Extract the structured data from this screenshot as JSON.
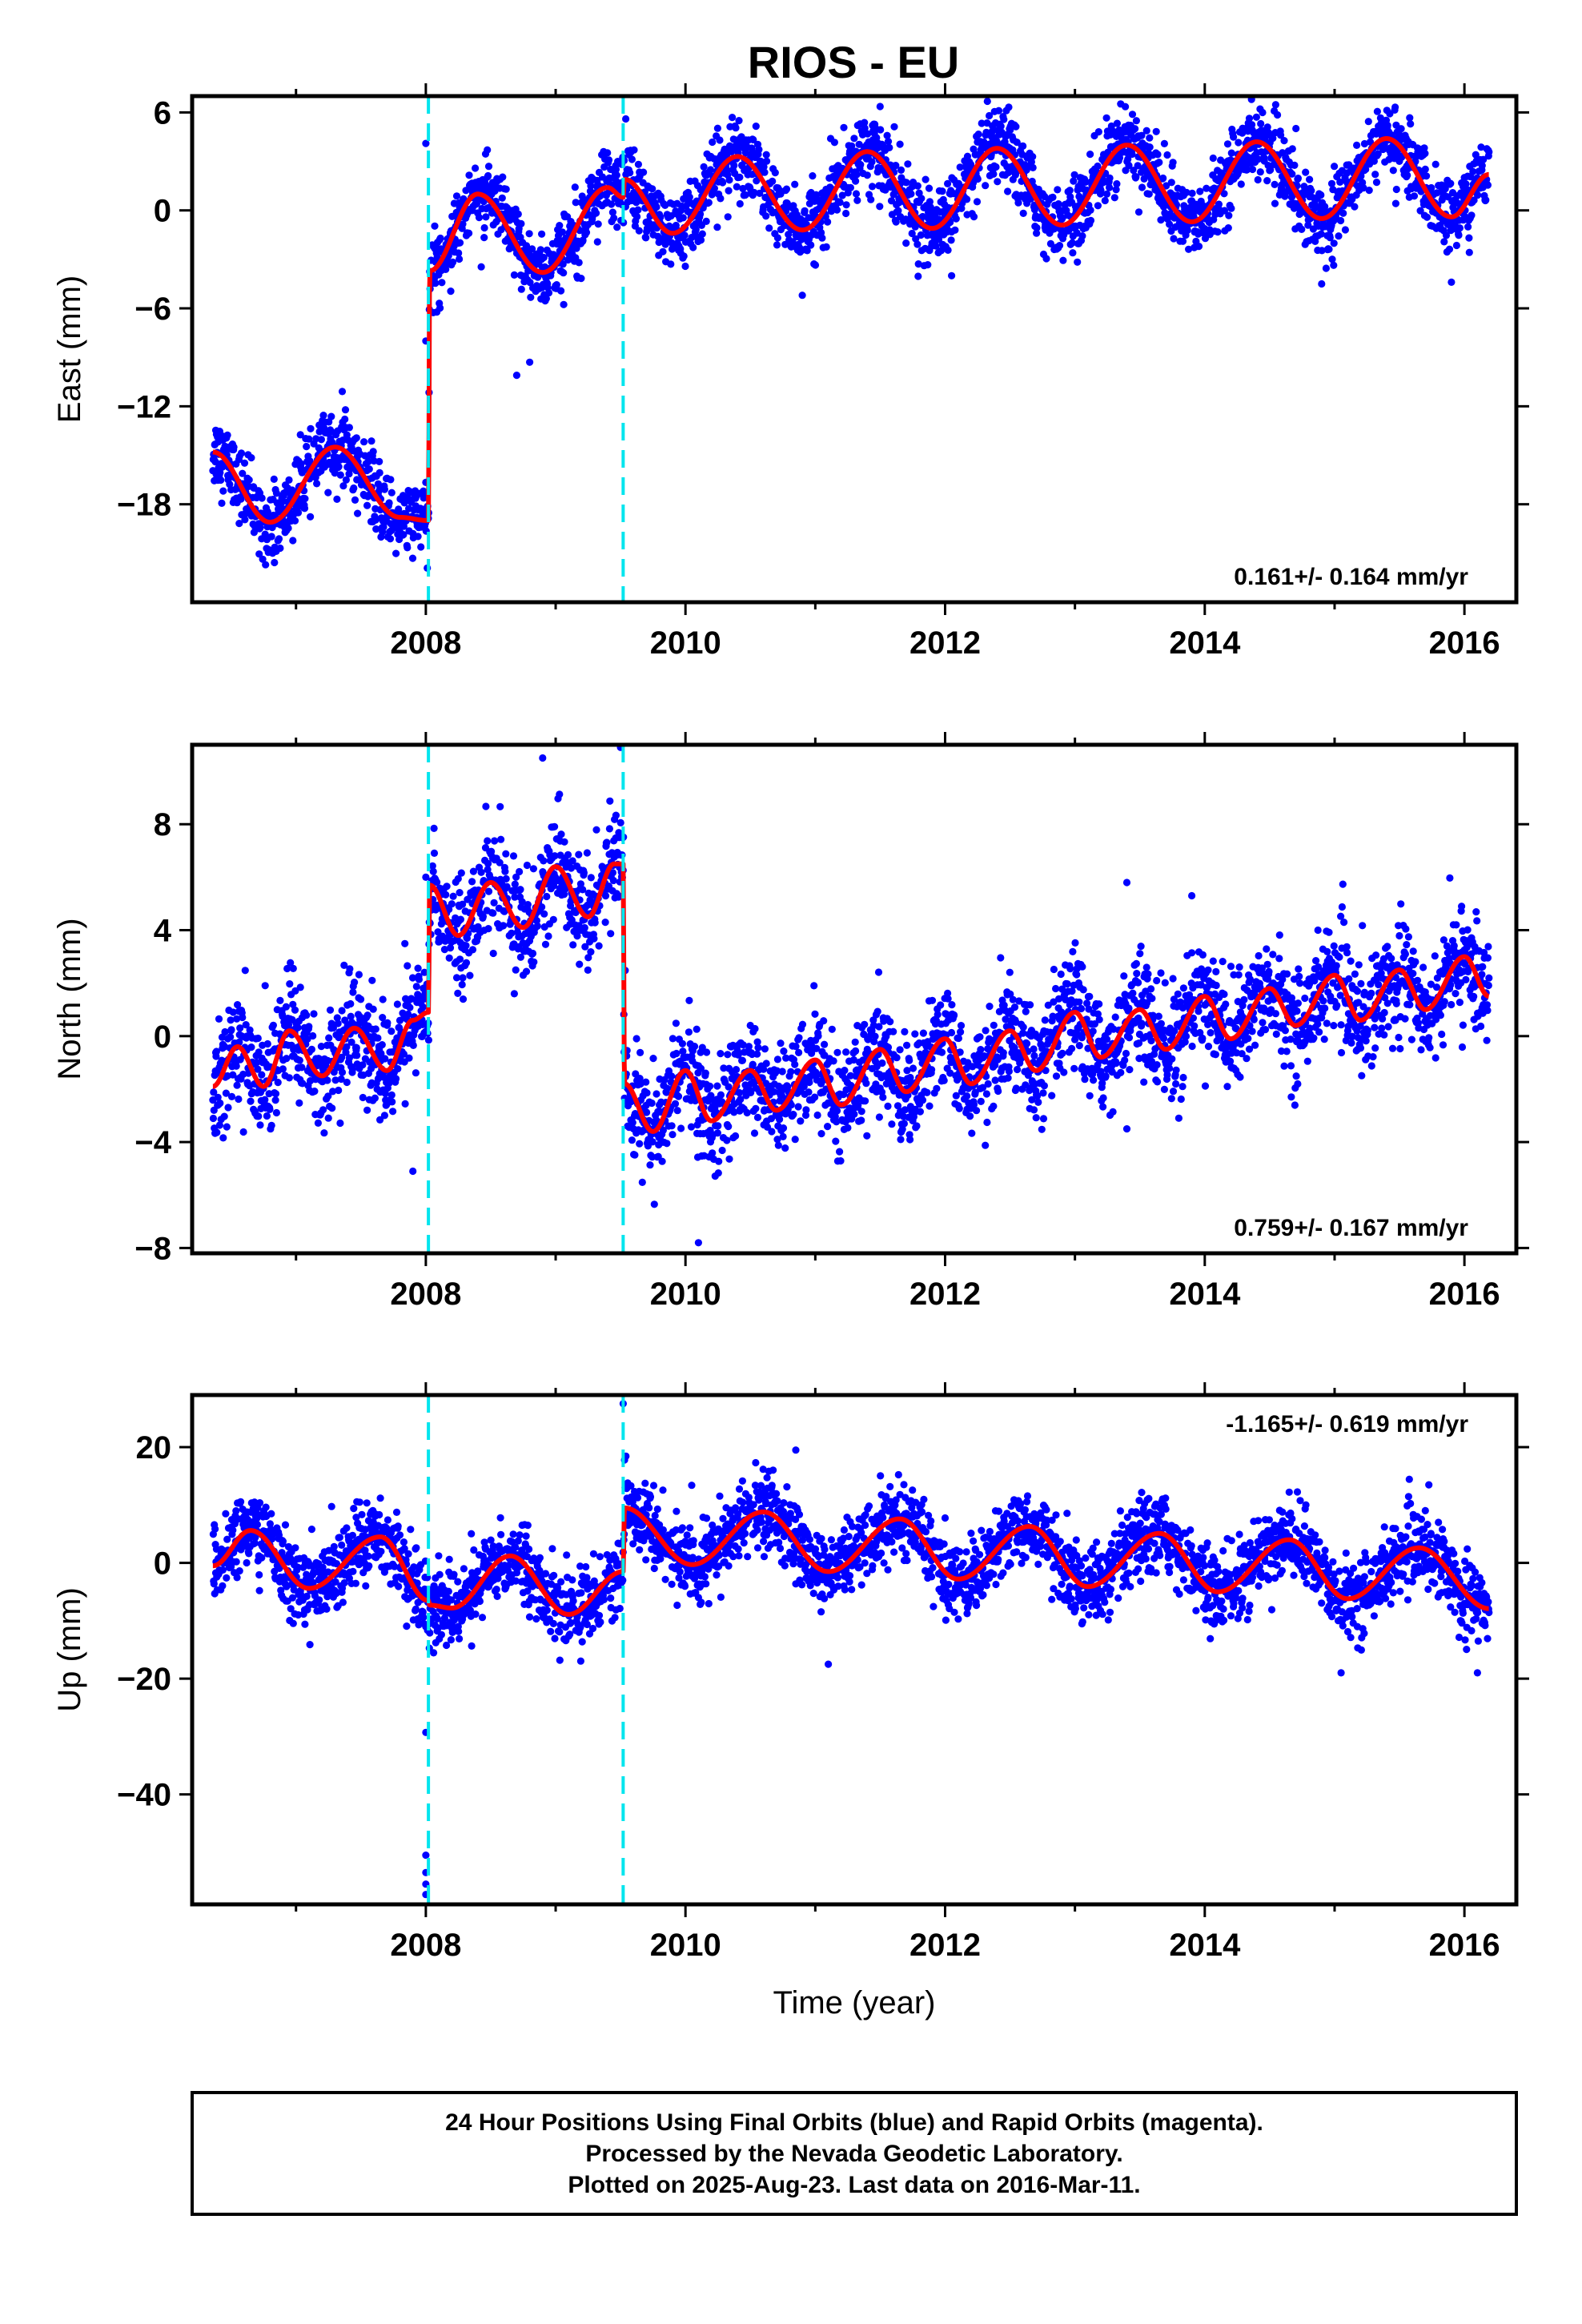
{
  "chart_data": [
    {
      "type": "scatter",
      "title": "RIOS - EU",
      "xlabel": "",
      "ylabel": "East (mm)",
      "xlim": [
        2006.2,
        2016.4
      ],
      "ylim": [
        -24,
        7
      ],
      "x_ticks": [
        2008,
        2010,
        2012,
        2014,
        2016
      ],
      "y_ticks": [
        -18,
        -12,
        -6,
        0,
        6
      ],
      "offsets": [
        2008.02,
        2009.52
      ],
      "rate_text": "0.161+/- 0.164 mm/yr",
      "rate_position": "bottom-right",
      "series": [
        {
          "color": "#0000ff",
          "kind": "daily-positions",
          "x_range": [
            2006.36,
            2016.19
          ],
          "scatter_sd": 1.1,
          "model_points": [
            [
              2006.36,
              -14.8
            ],
            [
              2006.8,
              -19.1
            ],
            [
              2007.3,
              -14.5
            ],
            [
              2007.8,
              -18.8
            ],
            [
              2008.02,
              -19.0
            ],
            [
              2008.03,
              -3.7
            ],
            [
              2008.4,
              1.0
            ],
            [
              2008.9,
              -3.8
            ],
            [
              2009.4,
              1.4
            ],
            [
              2009.52,
              0.8
            ],
            [
              2009.53,
              1.9
            ],
            [
              2009.9,
              -1.4
            ],
            [
              2010.4,
              3.3
            ],
            [
              2010.9,
              -1.2
            ],
            [
              2011.4,
              3.6
            ],
            [
              2011.9,
              -1.1
            ],
            [
              2012.4,
              3.8
            ],
            [
              2012.9,
              -0.9
            ],
            [
              2013.4,
              4.0
            ],
            [
              2013.9,
              -0.7
            ],
            [
              2014.4,
              4.2
            ],
            [
              2014.9,
              -0.5
            ],
            [
              2015.4,
              4.4
            ],
            [
              2015.9,
              -0.4
            ],
            [
              2016.19,
              2.2
            ]
          ],
          "outliers": [
            [
              2008.0,
              4.1
            ],
            [
              2008.0,
              -8.0
            ],
            [
              2008.7,
              -10.1
            ],
            [
              2008.8,
              -9.3
            ],
            [
              2009.54,
              5.6
            ],
            [
              2010.9,
              -5.2
            ],
            [
              2012.05,
              -4.0
            ],
            [
              2014.9,
              -4.5
            ],
            [
              2015.9,
              -4.4
            ]
          ]
        },
        {
          "color": "#ff0000",
          "kind": "model-fit",
          "x_range": [
            2006.36,
            2016.19
          ]
        }
      ]
    },
    {
      "type": "scatter",
      "title": "",
      "xlabel": "",
      "ylabel": "North (mm)",
      "xlim": [
        2006.2,
        2016.4
      ],
      "ylim": [
        -8.2,
        11
      ],
      "x_ticks": [
        2008,
        2010,
        2012,
        2014,
        2016
      ],
      "y_ticks": [
        -8,
        -4,
        0,
        4,
        8
      ],
      "offsets": [
        2008.02,
        2009.52
      ],
      "rate_text": "0.759+/- 0.167 mm/yr",
      "rate_position": "bottom-right",
      "series": [
        {
          "color": "#0000ff",
          "kind": "daily-positions",
          "x_range": [
            2006.36,
            2016.19
          ],
          "scatter_sd": 1.0,
          "model_points": [
            [
              2006.36,
              -1.9
            ],
            [
              2006.55,
              -0.4
            ],
            [
              2006.75,
              -1.9
            ],
            [
              2006.95,
              0.2
            ],
            [
              2007.2,
              -1.5
            ],
            [
              2007.45,
              0.3
            ],
            [
              2007.7,
              -1.3
            ],
            [
              2007.9,
              0.6
            ],
            [
              2008.02,
              0.9
            ],
            [
              2008.03,
              5.7
            ],
            [
              2008.25,
              3.8
            ],
            [
              2008.5,
              5.8
            ],
            [
              2008.75,
              4.1
            ],
            [
              2009.0,
              6.4
            ],
            [
              2009.25,
              4.5
            ],
            [
              2009.45,
              6.5
            ],
            [
              2009.52,
              6.5
            ],
            [
              2009.53,
              -1.8
            ],
            [
              2009.75,
              -3.6
            ],
            [
              2010.0,
              -1.3
            ],
            [
              2010.2,
              -3.2
            ],
            [
              2010.5,
              -1.3
            ],
            [
              2010.7,
              -2.8
            ],
            [
              2011.0,
              -0.9
            ],
            [
              2011.2,
              -2.6
            ],
            [
              2011.5,
              -0.5
            ],
            [
              2011.7,
              -2.1
            ],
            [
              2012.0,
              -0.1
            ],
            [
              2012.2,
              -1.8
            ],
            [
              2012.5,
              0.2
            ],
            [
              2012.7,
              -1.3
            ],
            [
              2013.0,
              0.9
            ],
            [
              2013.2,
              -0.8
            ],
            [
              2013.5,
              1.0
            ],
            [
              2013.7,
              -0.5
            ],
            [
              2014.0,
              1.5
            ],
            [
              2014.2,
              -0.1
            ],
            [
              2014.5,
              1.8
            ],
            [
              2014.7,
              0.4
            ],
            [
              2015.0,
              2.3
            ],
            [
              2015.2,
              0.6
            ],
            [
              2015.5,
              2.5
            ],
            [
              2015.7,
              1.0
            ],
            [
              2016.0,
              3.0
            ],
            [
              2016.19,
              1.5
            ]
          ],
          "outliers": [
            [
              2007.9,
              -5.1
            ],
            [
              2008.0,
              6.0
            ],
            [
              2008.9,
              10.5
            ],
            [
              2009.5,
              10.9
            ],
            [
              2010.1,
              -7.8
            ],
            [
              2013.4,
              5.8
            ],
            [
              2013.9,
              5.3
            ],
            [
              2013.4,
              -3.5
            ],
            [
              2013.8,
              -3.1
            ]
          ]
        },
        {
          "color": "#ff0000",
          "kind": "model-fit",
          "x_range": [
            2006.36,
            2016.19
          ]
        }
      ]
    },
    {
      "type": "scatter",
      "title": "",
      "xlabel": "Time (year)",
      "ylabel": "Up (mm)",
      "xlim": [
        2006.2,
        2016.4
      ],
      "ylim": [
        -59,
        29
      ],
      "x_ticks": [
        2008,
        2010,
        2012,
        2014,
        2016
      ],
      "y_ticks": [
        -40,
        -20,
        0,
        20
      ],
      "offsets": [
        2008.02,
        2009.52
      ],
      "rate_text": "-1.165+/- 0.619 mm/yr",
      "rate_position": "top-right",
      "series": [
        {
          "color": "#0000ff",
          "kind": "daily-positions",
          "x_range": [
            2006.36,
            2016.19
          ],
          "scatter_sd": 3.2,
          "model_points": [
            [
              2006.36,
              -0.5
            ],
            [
              2006.65,
              5.6
            ],
            [
              2007.1,
              -4.4
            ],
            [
              2007.65,
              4.5
            ],
            [
              2008.02,
              -6.5
            ],
            [
              2008.03,
              -7.3
            ],
            [
              2008.2,
              -7.8
            ],
            [
              2008.65,
              1.2
            ],
            [
              2009.1,
              -8.9
            ],
            [
              2009.52,
              -1.5
            ],
            [
              2009.53,
              9.5
            ],
            [
              2010.05,
              -0.3
            ],
            [
              2010.6,
              8.8
            ],
            [
              2011.1,
              -1.5
            ],
            [
              2011.65,
              7.6
            ],
            [
              2012.1,
              -2.8
            ],
            [
              2012.65,
              6.3
            ],
            [
              2013.1,
              -4.1
            ],
            [
              2013.65,
              5.1
            ],
            [
              2014.1,
              -5.0
            ],
            [
              2014.65,
              4.0
            ],
            [
              2015.1,
              -6.2
            ],
            [
              2015.65,
              2.6
            ],
            [
              2016.19,
              -7.9
            ]
          ],
          "outliers": [
            [
              2008.0,
              -29.3
            ],
            [
              2008.0,
              -50.5
            ],
            [
              2008.0,
              -53.5
            ],
            [
              2008.0,
              -55.5
            ],
            [
              2008.0,
              -57.3
            ],
            [
              2009.52,
              27.5
            ],
            [
              2010.85,
              19.5
            ],
            [
              2011.1,
              -17.5
            ],
            [
              2015.05,
              -19.0
            ],
            [
              2016.1,
              -19.0
            ]
          ]
        },
        {
          "color": "#ff0000",
          "kind": "model-fit",
          "x_range": [
            2006.36,
            2016.19
          ]
        }
      ]
    }
  ],
  "footer": {
    "line1": "24 Hour Positions Using Final Orbits (blue) and Rapid Orbits (magenta).",
    "line2": "Processed by the Nevada Geodetic Laboratory.",
    "line3": "Plotted on 2025-Aug-23. Last data on 2016-Mar-11."
  },
  "colors": {
    "points": "#0000ff",
    "model": "#ff0000",
    "offset_line": "#00e5ee",
    "frame": "#000000"
  }
}
